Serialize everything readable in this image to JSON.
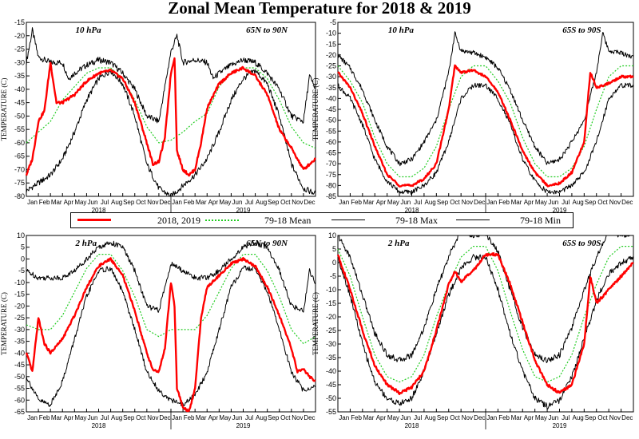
{
  "title": "Zonal Mean Temperature for 2018 & 2019",
  "legend": [
    {
      "label": "2018, 2019",
      "color": "#ff0000",
      "style": "solid-thick"
    },
    {
      "label": "79-18 Mean",
      "color": "#22cc22",
      "style": "dotted"
    },
    {
      "label": "79-18 Max",
      "color": "#000000",
      "style": "solid"
    },
    {
      "label": "79-18 Min",
      "color": "#000000",
      "style": "solid"
    }
  ],
  "months": [
    "Jan",
    "Feb",
    "Mar",
    "Apr",
    "May",
    "Jun",
    "Jul",
    "Aug",
    "Sep",
    "Oct",
    "Nov",
    "Dec",
    "Jan",
    "Feb",
    "Mar",
    "Apr",
    "May",
    "Jun",
    "Jul",
    "Aug",
    "Sep",
    "Oct",
    "Nov",
    "Dec"
  ],
  "years": [
    "2018",
    "2019"
  ],
  "chart_data": [
    {
      "type": "line",
      "id": "p1",
      "level": "10 hPa",
      "region": "65N to 90N",
      "ylabel": "TEMPERATURE (C)",
      "ylim": [
        -80,
        -15
      ],
      "yticks": [
        -80,
        -75,
        -70,
        -65,
        -60,
        -55,
        -50,
        -45,
        -40,
        -35,
        -30,
        -25,
        -20,
        -15
      ],
      "series": [
        {
          "name": "2018, 2019",
          "x": [
            0,
            0.5,
            1,
            1.5,
            2,
            2.5,
            3,
            4,
            5,
            6,
            7,
            8,
            9,
            10,
            10.5,
            11,
            11.5,
            12,
            12.3,
            12.5,
            13,
            13.5,
            14,
            14.5,
            15,
            16,
            17,
            18,
            19,
            20,
            21,
            22,
            22.5,
            23,
            23.5,
            24
          ],
          "y": [
            -72,
            -66,
            -52,
            -48,
            -30,
            -45,
            -45,
            -42,
            -37,
            -34,
            -33,
            -36,
            -45,
            -60,
            -68,
            -67,
            -58,
            -34,
            -28,
            -63,
            -70,
            -72,
            -70,
            -60,
            -47,
            -38,
            -34,
            -32,
            -35,
            -42,
            -55,
            -62,
            -66,
            -70,
            -68,
            -66
          ]
        },
        {
          "name": "79-18 Mean",
          "x": [
            0,
            1,
            2,
            2.5,
            3,
            4,
            5,
            6,
            7,
            8,
            9,
            10,
            11,
            12,
            13,
            14,
            15,
            16,
            17,
            18,
            19,
            20,
            21,
            22,
            23,
            24
          ],
          "y": [
            -60,
            -56,
            -52,
            -48,
            -44,
            -39,
            -34,
            -32,
            -32,
            -36,
            -44,
            -54,
            -60,
            -59,
            -56,
            -52,
            -49,
            -39,
            -34,
            -32,
            -32,
            -36,
            -44,
            -54,
            -60,
            -62
          ]
        },
        {
          "name": "79-18 Max",
          "x": [
            0,
            0.5,
            1,
            2,
            3,
            3.5,
            4,
            5,
            6,
            7,
            8,
            9,
            10,
            11,
            12,
            12.5,
            13,
            14,
            15,
            15.5,
            16,
            17,
            18,
            19,
            20,
            21,
            22,
            23,
            23.5,
            24
          ],
          "y": [
            -30,
            -18,
            -28,
            -30,
            -30,
            -36,
            -34,
            -31,
            -29,
            -30,
            -34,
            -40,
            -50,
            -52,
            -26,
            -20,
            -30,
            -29,
            -30,
            -36,
            -34,
            -31,
            -29,
            -30,
            -34,
            -40,
            -50,
            -52,
            -35,
            -40
          ]
        },
        {
          "name": "79-18 Min",
          "x": [
            0,
            1,
            2,
            3,
            4,
            5,
            6,
            7,
            8,
            9,
            10,
            11,
            12,
            13,
            14,
            15,
            16,
            17,
            18,
            19,
            20,
            21,
            22,
            23,
            24
          ],
          "y": [
            -78,
            -75,
            -72,
            -66,
            -56,
            -44,
            -36,
            -33,
            -38,
            -50,
            -68,
            -77,
            -80,
            -76,
            -72,
            -66,
            -56,
            -44,
            -36,
            -33,
            -38,
            -50,
            -68,
            -77,
            -79
          ]
        }
      ]
    },
    {
      "type": "line",
      "id": "p2",
      "level": "10 hPa",
      "region": "65S to 90S",
      "ylabel": "TEMPERATURE (C)",
      "ylim": [
        -85,
        -5
      ],
      "yticks": [
        -85,
        -80,
        -75,
        -70,
        -65,
        -60,
        -55,
        -50,
        -45,
        -40,
        -35,
        -30,
        -25,
        -20,
        -15,
        -10,
        -5
      ],
      "series": [
        {
          "name": "2018, 2019",
          "x": [
            0,
            1,
            2,
            3,
            4,
            5,
            6,
            7,
            8,
            9,
            9.5,
            10,
            11,
            12,
            13,
            14,
            15,
            16,
            17,
            18,
            19,
            20,
            20.5,
            21,
            22,
            23,
            24
          ],
          "y": [
            -28,
            -35,
            -47,
            -62,
            -75,
            -80,
            -80,
            -77,
            -70,
            -45,
            -25,
            -28,
            -27,
            -30,
            -37,
            -50,
            -64,
            -74,
            -80,
            -79,
            -74,
            -60,
            -28,
            -35,
            -33,
            -30,
            -30
          ]
        },
        {
          "name": "79-18 Mean",
          "x": [
            0,
            1,
            2,
            3,
            4,
            5,
            6,
            7,
            8,
            9,
            10,
            11,
            12,
            13,
            14,
            15,
            16,
            17,
            18,
            19,
            20,
            21,
            22,
            23,
            24
          ],
          "y": [
            -25,
            -32,
            -42,
            -58,
            -70,
            -76,
            -76,
            -72,
            -62,
            -45,
            -30,
            -25,
            -25,
            -32,
            -42,
            -58,
            -70,
            -76,
            -76,
            -72,
            -62,
            -45,
            -30,
            -25,
            -25
          ]
        },
        {
          "name": "79-18 Max",
          "x": [
            0,
            1,
            2,
            3,
            4,
            5,
            6,
            7,
            8,
            9,
            9.5,
            10,
            11,
            12,
            13,
            14,
            15,
            16,
            17,
            18,
            19,
            20,
            21,
            21.5,
            22,
            23,
            24
          ],
          "y": [
            -20,
            -26,
            -36,
            -50,
            -62,
            -70,
            -68,
            -60,
            -50,
            -28,
            -10,
            -18,
            -19,
            -21,
            -26,
            -36,
            -50,
            -62,
            -70,
            -68,
            -60,
            -50,
            -28,
            -10,
            -18,
            -19,
            -21
          ]
        },
        {
          "name": "79-18 Min",
          "x": [
            0,
            1,
            2,
            3,
            4,
            5,
            6,
            7,
            8,
            9,
            10,
            11,
            12,
            13,
            14,
            15,
            16,
            17,
            18,
            19,
            20,
            21,
            22,
            23,
            24
          ],
          "y": [
            -34,
            -40,
            -52,
            -68,
            -78,
            -83,
            -83,
            -80,
            -74,
            -60,
            -40,
            -34,
            -34,
            -40,
            -52,
            -68,
            -78,
            -83,
            -83,
            -80,
            -74,
            -60,
            -40,
            -34,
            -34
          ]
        }
      ]
    },
    {
      "type": "line",
      "id": "p3",
      "level": "2 hPa",
      "region": "65N to 90N",
      "ylabel": "TEMPERATURE (C)",
      "ylim": [
        -65,
        10
      ],
      "yticks": [
        -65,
        -60,
        -55,
        -50,
        -45,
        -40,
        -35,
        -30,
        -25,
        -20,
        -15,
        -10,
        -5,
        0,
        5,
        10
      ],
      "series": [
        {
          "name": "2018, 2019",
          "x": [
            0,
            0.5,
            1,
            1.5,
            2,
            3,
            4,
            5,
            6,
            7,
            8,
            9,
            10,
            10.5,
            11,
            11.5,
            12,
            12.3,
            12.5,
            13,
            13.5,
            14,
            14.5,
            15,
            16,
            17,
            18,
            19,
            20,
            21,
            22,
            22.5,
            23,
            23.5,
            24
          ],
          "y": [
            -40,
            -48,
            -25,
            -36,
            -40,
            -34,
            -24,
            -12,
            -3,
            0,
            -7,
            -22,
            -40,
            -47,
            -48,
            -38,
            -10,
            -20,
            -55,
            -63,
            -65,
            -55,
            -25,
            -12,
            -7,
            -2,
            0,
            -3,
            -12,
            -24,
            -38,
            -48,
            -47,
            -50,
            -52
          ]
        },
        {
          "name": "79-18 Mean",
          "x": [
            0,
            1,
            2,
            3,
            4,
            5,
            6,
            7,
            8,
            9,
            10,
            11,
            12,
            13,
            14,
            15,
            16,
            17,
            18,
            19,
            20,
            21,
            22,
            23,
            24
          ],
          "y": [
            -28,
            -30,
            -30,
            -24,
            -14,
            -4,
            2,
            2,
            -5,
            -16,
            -30,
            -33,
            -30,
            -30,
            -30,
            -24,
            -14,
            -4,
            2,
            2,
            -5,
            -16,
            -30,
            -36,
            -33
          ]
        },
        {
          "name": "79-18 Max",
          "x": [
            0,
            1,
            2,
            3,
            4,
            5,
            6,
            7,
            8,
            9,
            10,
            11,
            12,
            13,
            14,
            15,
            16,
            17,
            18,
            19,
            20,
            21,
            22,
            23,
            23.5,
            24
          ],
          "y": [
            -5,
            -8,
            -8,
            -8,
            -5,
            0,
            5,
            7,
            5,
            -5,
            -20,
            -22,
            -2,
            -5,
            -8,
            -8,
            -5,
            0,
            5,
            7,
            5,
            -5,
            -20,
            -22,
            -5,
            -10
          ]
        },
        {
          "name": "79-18 Min",
          "x": [
            0,
            1,
            2,
            3,
            4,
            5,
            6,
            7,
            8,
            9,
            10,
            11,
            12,
            13,
            14,
            15,
            16,
            17,
            18,
            19,
            20,
            21,
            22,
            23,
            24
          ],
          "y": [
            -50,
            -60,
            -62,
            -52,
            -34,
            -16,
            -5,
            -4,
            -14,
            -30,
            -48,
            -56,
            -60,
            -62,
            -58,
            -48,
            -30,
            -12,
            -4,
            -4,
            -14,
            -30,
            -48,
            -56,
            -54
          ]
        }
      ]
    },
    {
      "type": "line",
      "id": "p4",
      "level": "2 hPa",
      "region": "65S to 90S",
      "ylabel": "TEMPERATURE (C)",
      "ylim": [
        -55,
        10
      ],
      "yticks": [
        -55,
        -50,
        -45,
        -40,
        -35,
        -30,
        -25,
        -20,
        -15,
        -10,
        -5,
        0,
        5,
        10
      ],
      "series": [
        {
          "name": "2018, 2019",
          "x": [
            0,
            1,
            2,
            3,
            4,
            5,
            6,
            7,
            8,
            9,
            9.5,
            10,
            11,
            12,
            13,
            14,
            15,
            16,
            17,
            18,
            19,
            20,
            20.5,
            21,
            22,
            23,
            24
          ],
          "y": [
            3,
            -10,
            -25,
            -38,
            -45,
            -48,
            -46,
            -40,
            -25,
            -8,
            -3,
            -7,
            -3,
            3,
            3,
            -8,
            -22,
            -36,
            -45,
            -48,
            -45,
            -30,
            -5,
            -15,
            -10,
            -5,
            0
          ]
        },
        {
          "name": "79-18 Mean",
          "x": [
            0,
            1,
            2,
            3,
            4,
            5,
            6,
            7,
            8,
            9,
            10,
            11,
            12,
            13,
            14,
            15,
            16,
            17,
            18,
            19,
            20,
            21,
            22,
            23,
            24
          ],
          "y": [
            5,
            -5,
            -20,
            -34,
            -42,
            -44,
            -42,
            -34,
            -20,
            -8,
            2,
            6,
            6,
            -3,
            -18,
            -32,
            -42,
            -44,
            -42,
            -34,
            -20,
            -8,
            2,
            6,
            6
          ]
        },
        {
          "name": "79-18 Max",
          "x": [
            0,
            1,
            2,
            3,
            4,
            5,
            6,
            7,
            8,
            9,
            10,
            11,
            12,
            13,
            14,
            15,
            16,
            17,
            18,
            19,
            20,
            21,
            22,
            23,
            24
          ],
          "y": [
            10,
            2,
            -12,
            -26,
            -34,
            -36,
            -34,
            -24,
            -10,
            2,
            12,
            10,
            11,
            4,
            -10,
            -24,
            -34,
            -36,
            -34,
            -24,
            -10,
            2,
            12,
            10,
            11
          ]
        },
        {
          "name": "79-18 Min",
          "x": [
            0,
            1,
            2,
            3,
            4,
            5,
            6,
            7,
            8,
            9,
            10,
            11,
            12,
            13,
            14,
            15,
            16,
            17,
            18,
            19,
            20,
            21,
            22,
            23,
            24
          ],
          "y": [
            2,
            -12,
            -30,
            -44,
            -50,
            -52,
            -50,
            -40,
            -26,
            -12,
            -2,
            2,
            2,
            -10,
            -26,
            -40,
            -50,
            -53,
            -51,
            -42,
            -28,
            -14,
            -4,
            0,
            2
          ]
        }
      ]
    }
  ]
}
